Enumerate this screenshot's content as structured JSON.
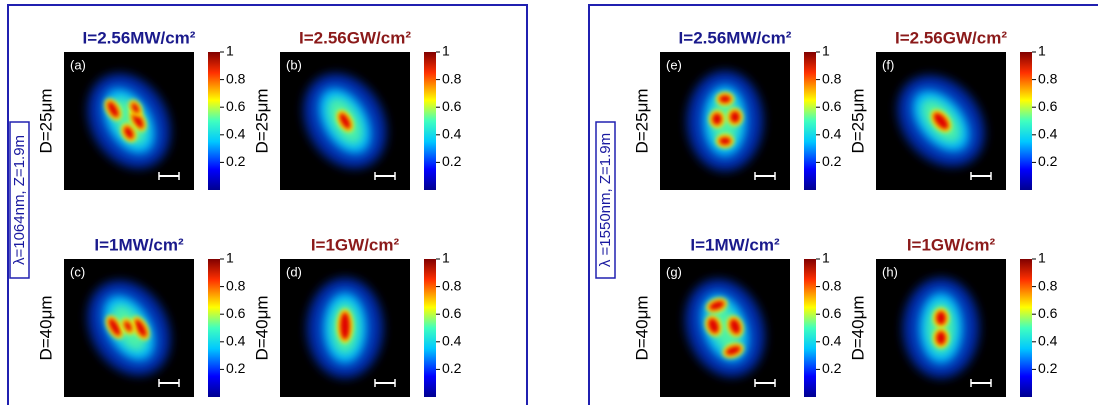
{
  "colorbar": {
    "ticks": [
      0.2,
      0.4,
      0.6,
      0.8,
      1
    ]
  },
  "groups": [
    {
      "side_label": "λ=1064nm, Z=1.9m",
      "panels": [
        {
          "title": "I=2.56MW/cm²",
          "letter": "(a)",
          "d_label": "D=25μm"
        },
        {
          "title": "I=2.56GW/cm²",
          "letter": "(b)",
          "d_label": "D=25μm"
        },
        {
          "title": "I=1MW/cm²",
          "letter": "(c)",
          "d_label": "D=40μm"
        },
        {
          "title": "I=1GW/cm²",
          "letter": "(d)",
          "d_label": "D=40μm"
        }
      ]
    },
    {
      "side_label": "λ =1550nm, Z=1.9m",
      "panels": [
        {
          "title": "I=2.56MW/cm²",
          "letter": "(e)",
          "d_label": "D=25μm"
        },
        {
          "title": "I=2.56GW/cm²",
          "letter": "(f)",
          "d_label": "D=25μm"
        },
        {
          "title": "I=1MW/cm²",
          "letter": "(g)",
          "d_label": "D=40μm"
        },
        {
          "title": "I=1GW/cm²",
          "letter": "(h)",
          "d_label": "D=40μm"
        }
      ]
    }
  ]
}
